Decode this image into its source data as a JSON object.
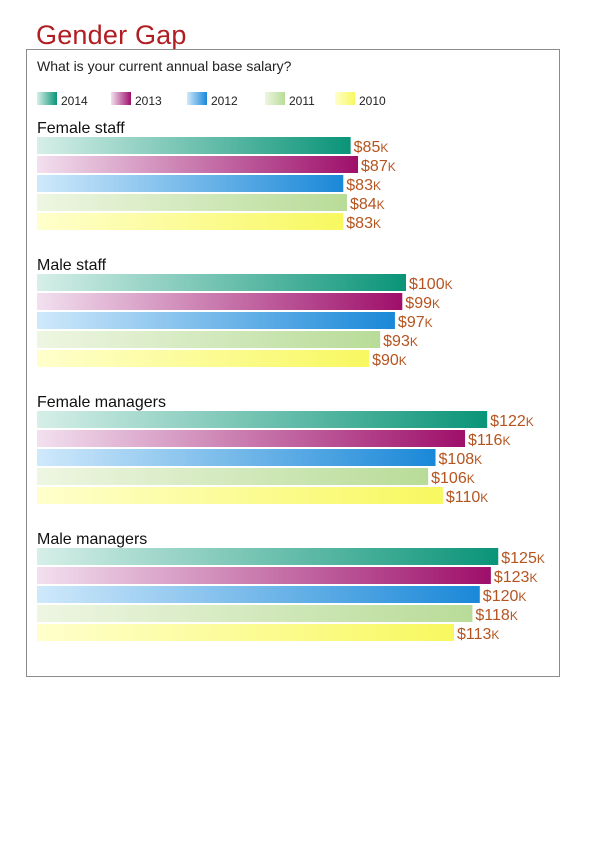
{
  "title": "Gender Gap",
  "subtitle": "What is your current annual base salary?",
  "legend": [
    {
      "label": "2014",
      "color_start": "#d6efe8",
      "color_end": "#0a9478"
    },
    {
      "label": "2013",
      "color_start": "#f2e0ef",
      "color_end": "#9e0f6a"
    },
    {
      "label": "2012",
      "color_start": "#cfe9fb",
      "color_end": "#1a88d8"
    },
    {
      "label": "2011",
      "color_start": "#eef6e2",
      "color_end": "#b8dc98"
    },
    {
      "label": "2010",
      "color_start": "#ffffcc",
      "color_end": "#f8f860"
    }
  ],
  "chart_data": {
    "type": "bar",
    "orientation": "horizontal",
    "title": "Gender Gap",
    "subtitle": "What is your current annual base salary?",
    "unit_prefix": "$",
    "unit_suffix": "K",
    "xlim": [
      0,
      130
    ],
    "grid": false,
    "legend_position": "top-left",
    "series_names": [
      "2014",
      "2013",
      "2012",
      "2011",
      "2010"
    ],
    "groups": [
      {
        "name": "Female staff",
        "values": [
          85,
          87,
          83,
          84,
          83
        ]
      },
      {
        "name": "Male staff",
        "values": [
          100,
          99,
          97,
          93,
          90
        ]
      },
      {
        "name": "Female managers",
        "values": [
          122,
          116,
          108,
          106,
          110
        ]
      },
      {
        "name": "Male managers",
        "values": [
          125,
          123,
          120,
          118,
          113
        ]
      }
    ]
  }
}
